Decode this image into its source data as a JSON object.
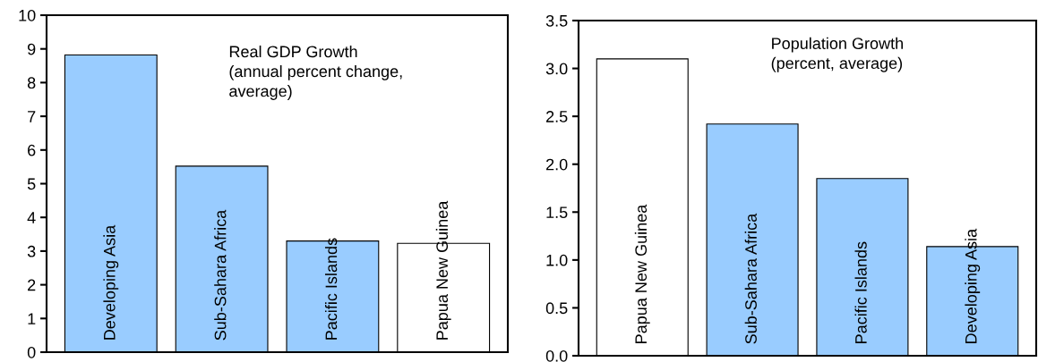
{
  "chart_data": [
    {
      "type": "bar",
      "title": "Real GDP Growth\n(annual percent change,\naverage)",
      "categories": [
        "Developing Asia",
        "Sub-Sahara Africa",
        "Pacific Islands",
        "Papua New Guinea"
      ],
      "values": [
        8.82,
        5.52,
        3.3,
        3.23
      ],
      "colors": [
        "#99ccff",
        "#99ccff",
        "#99ccff",
        "#ffffff"
      ],
      "ylim": [
        0,
        10
      ],
      "yticks": [
        0,
        1,
        2,
        3,
        4,
        5,
        6,
        7,
        8,
        9,
        10
      ],
      "grid": false,
      "legend": false
    },
    {
      "type": "bar",
      "title": "Population Growth\n(percent, average)",
      "categories": [
        "Papua New Guinea",
        "Sub-Sahara Africa",
        "Pacific Islands",
        "Developing Asia"
      ],
      "values": [
        3.1,
        2.42,
        1.85,
        1.14
      ],
      "colors": [
        "#ffffff",
        "#99ccff",
        "#99ccff",
        "#99ccff"
      ],
      "ylim": [
        0,
        3.5
      ],
      "yticks": [
        {
          "value": 0,
          "label": "0.0"
        },
        {
          "value": 0.5,
          "label": "0.5"
        },
        {
          "value": 1,
          "label": "1.0"
        },
        {
          "value": 1.5,
          "label": "1.5"
        },
        {
          "value": 2,
          "label": "2.0"
        },
        {
          "value": 2.5,
          "label": "2.5"
        },
        {
          "value": 3,
          "label": "3.0"
        },
        {
          "value": 3.5,
          "label": "3.5"
        }
      ],
      "grid": false,
      "legend": false
    }
  ]
}
